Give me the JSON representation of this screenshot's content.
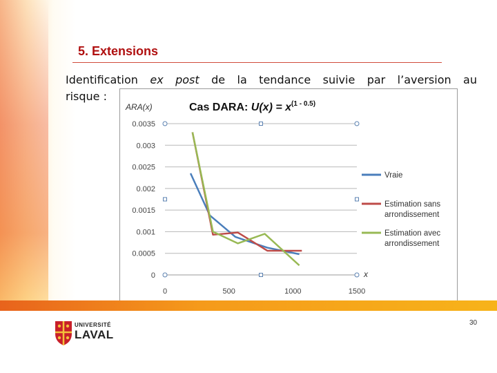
{
  "slide": {
    "title": "5. Extensions",
    "paragraph_line1_a": "Identification",
    "paragraph_line1_em": "ex post",
    "paragraph_line1_b": "de la tendance suivie par l’aversion au",
    "paragraph_line2": "risque :",
    "page_number": "30",
    "logo_line1": "UNIVERSITÉ",
    "logo_line2": "LAVAL",
    "accent_color": "#b01010"
  },
  "chart_data": {
    "type": "line",
    "title_prefix": "Cas DARA: ",
    "title_func": "U(x) = x",
    "title_exponent": "(1 - 0.5)",
    "ylabel": "ARA(x)",
    "xlabel": "x",
    "xlim": [
      0,
      1500
    ],
    "ylim": [
      0,
      0.0035
    ],
    "x_ticks": [
      0,
      500,
      1000,
      1500
    ],
    "x_tick_labels": [
      "0",
      "500",
      "1000",
      "1500"
    ],
    "y_ticks": [
      0,
      0.0005,
      0.001,
      0.0015,
      0.002,
      0.0025,
      0.003,
      0.0035
    ],
    "y_tick_labels": [
      "0",
      "0.0005",
      "0.001",
      "0.0015",
      "0.002",
      "0.0025",
      "0.003",
      "0.0035"
    ],
    "grid": true,
    "legend_position": "right",
    "series": [
      {
        "name": "Vraie",
        "color": "#4a7ebb",
        "x": [
          200,
          350,
          550,
          800,
          1050
        ],
        "y": [
          0.00235,
          0.00138,
          0.00088,
          0.00063,
          0.00048
        ]
      },
      {
        "name": "Estimation sans arrondissement",
        "color": "#be4b48",
        "x": [
          215,
          375,
          570,
          800,
          1070
        ],
        "y": [
          0.0033,
          0.00093,
          0.00098,
          0.00056,
          0.00056
        ]
      },
      {
        "name": "Estimation avec arrondissement",
        "color": "#98b954",
        "x": [
          215,
          375,
          570,
          780,
          1050
        ],
        "y": [
          0.0033,
          0.001,
          0.00073,
          0.00095,
          0.00022
        ]
      }
    ]
  }
}
